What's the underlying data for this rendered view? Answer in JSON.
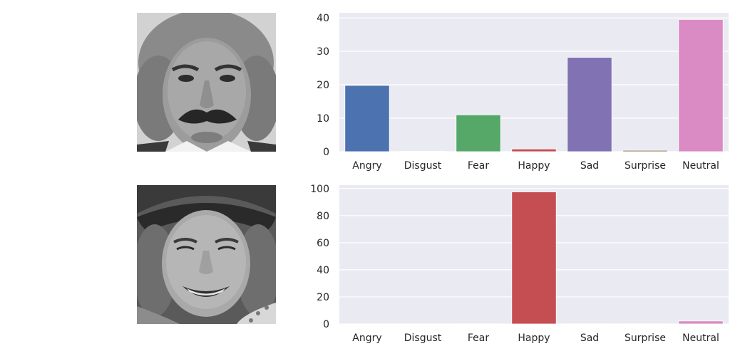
{
  "chart_data": [
    {
      "type": "bar",
      "categories": [
        "Angry",
        "Disgust",
        "Fear",
        "Happy",
        "Sad",
        "Surprise",
        "Neutral"
      ],
      "values": [
        19.8,
        0.1,
        11.0,
        0.8,
        28.2,
        0.4,
        39.5
      ],
      "ylim": [
        0,
        41.5
      ],
      "yticks": [
        0,
        10,
        20,
        30,
        40
      ],
      "grid": true,
      "title": "",
      "xlabel": "",
      "ylabel": ""
    },
    {
      "type": "bar",
      "categories": [
        "Angry",
        "Disgust",
        "Fear",
        "Happy",
        "Sad",
        "Surprise",
        "Neutral"
      ],
      "values": [
        0.0,
        0.0,
        0.1,
        97.5,
        0.1,
        0.1,
        2.2
      ],
      "ylim": [
        0,
        102.5
      ],
      "yticks": [
        0,
        20,
        40,
        60,
        80,
        100
      ],
      "grid": true,
      "title": "",
      "xlabel": "",
      "ylabel": ""
    }
  ],
  "colors": {
    "plot_background": "#EAEAF2",
    "grid": "#FFFFFF",
    "bars": [
      "#4C72B0",
      "#DD8452",
      "#55A868",
      "#C44E52",
      "#8172B3",
      "#937860",
      "#DA8BC3"
    ]
  },
  "images": [
    {
      "name": "face-photo-older-man-mustache"
    },
    {
      "name": "face-photo-smiling-woman-hat"
    }
  ]
}
